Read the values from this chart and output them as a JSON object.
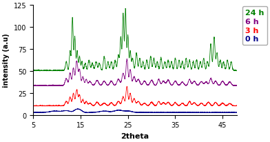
{
  "xlabel": "2theta",
  "ylabel": "intensity (a.u)",
  "xlim": [
    5,
    48
  ],
  "ylim": [
    0,
    125
  ],
  "yticks": [
    0,
    25,
    50,
    75,
    100,
    125
  ],
  "xticks": [
    5,
    15,
    25,
    35,
    45
  ],
  "colors": {
    "0h": "#00008B",
    "3h": "#FF0000",
    "6h": "#800080",
    "24h": "#008000"
  },
  "legend_labels": [
    "24 h",
    "6 h",
    "3 h",
    "0 h"
  ],
  "legend_colors": [
    "#008000",
    "#800080",
    "#FF0000",
    "#00008B"
  ],
  "background_color": "#ffffff",
  "seed": 7
}
